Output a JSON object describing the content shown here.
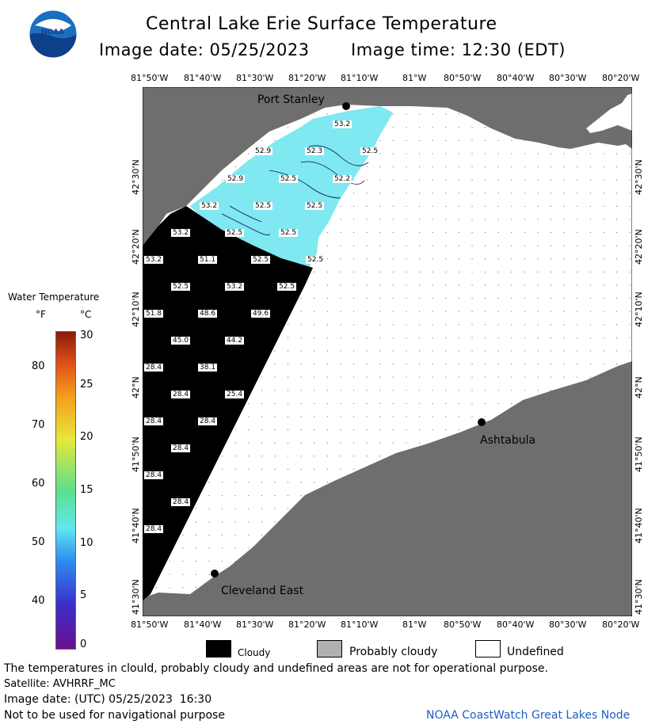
{
  "header": {
    "title": "Central Lake Erie Surface Temperature",
    "image_date": "Image date: 05/25/2023",
    "image_time": "Image time: 12:30 (EDT)",
    "logo_text": "NOAA"
  },
  "lon_ticks": [
    "81°50'W",
    "81°40'W",
    "81°30'W",
    "81°20'W",
    "81°10'W",
    "81°W",
    "80°50'W",
    "80°40'W",
    "80°30'W",
    "80°20'W"
  ],
  "lat_ticks": [
    "42°30'N",
    "42°20'N",
    "42°10'N",
    "42°N",
    "41°50'N",
    "41°40'N",
    "41°30'N"
  ],
  "places": {
    "port_stanley": "Port Stanley",
    "ashtabula": "Ashtabula",
    "cleveland_east": "Cleveland East"
  },
  "temp_labels": [
    "53.2",
    "52.9",
    "52.3",
    "52.5",
    "52.9",
    "52.5",
    "52.2",
    "53.2",
    "52.5",
    "52.5",
    "53.2",
    "52.5",
    "52.5",
    "53.2",
    "51.1",
    "52.5",
    "52.5",
    "52.5",
    "53.2",
    "52.5",
    "51.8",
    "48.6",
    "49.6",
    "45.0",
    "44.2",
    "28.4",
    "38.1",
    "28.4",
    "25.4",
    "28.4",
    "28.4",
    "28.4",
    "28.4",
    "28.4",
    "28.4"
  ],
  "legend": {
    "title": "Water Temperature",
    "unit_f": "°F",
    "unit_c": "°C",
    "f_ticks": [
      "80",
      "70",
      "60",
      "50",
      "40"
    ],
    "c_ticks": [
      "30",
      "25",
      "20",
      "15",
      "10",
      "5",
      "0"
    ]
  },
  "key": {
    "cloudy": "Cloudy",
    "probably_cloudy": "Probably cloudy",
    "undefined": "Undefined"
  },
  "footer": {
    "disclaimer": "The temperatures in clould, probably cloudy and undefined areas are not for operational purpose.",
    "satellite": "Satellite: AVHRRF_MC",
    "utc_date": "Image date: (UTC) 05/25/2023  16:30",
    "nav_warning": "Not to be used for navigational purpose",
    "credit": "NOAA CoastWatch Great Lakes Node"
  },
  "colors": {
    "land": "#6e6e6e",
    "cloud": "#000000",
    "water_warm": "#7fe8f0",
    "undefined": "#ffffff",
    "credit_blue": "#1f5fbf"
  }
}
